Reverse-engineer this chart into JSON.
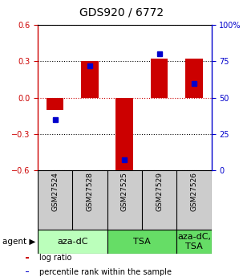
{
  "title": "GDS920 / 6772",
  "samples": [
    "GSM27524",
    "GSM27528",
    "GSM27525",
    "GSM27529",
    "GSM27526"
  ],
  "log_ratios": [
    -0.1,
    0.3,
    -0.62,
    0.32,
    0.32
  ],
  "percentile_ranks": [
    35,
    72,
    7,
    80,
    60
  ],
  "ylim_left": [
    -0.6,
    0.6
  ],
  "ylim_right": [
    0,
    100
  ],
  "yticks_left": [
    -0.6,
    -0.3,
    0.0,
    0.3,
    0.6
  ],
  "yticks_right": [
    0,
    25,
    50,
    75,
    100
  ],
  "ytick_labels_right": [
    "0",
    "25",
    "50",
    "75",
    "100%"
  ],
  "bar_color": "#cc0000",
  "pct_color": "#0000cc",
  "agent_groups": [
    {
      "label": "aza-dC",
      "start": 0,
      "end": 2,
      "color": "#bbffbb"
    },
    {
      "label": "TSA",
      "start": 2,
      "end": 4,
      "color": "#66dd66"
    },
    {
      "label": "aza-dC,\nTSA",
      "start": 4,
      "end": 5,
      "color": "#66dd66"
    }
  ],
  "sample_bg": "#cccccc",
  "legend_items": [
    {
      "color": "#cc0000",
      "label": "log ratio"
    },
    {
      "color": "#0000cc",
      "label": "percentile rank within the sample"
    }
  ],
  "bar_width": 0.5,
  "bg_color": "#ffffff",
  "title_fontsize": 10,
  "tick_fontsize": 7,
  "sample_fontsize": 6.5,
  "agent_fontsize": 8,
  "legend_fontsize": 7
}
